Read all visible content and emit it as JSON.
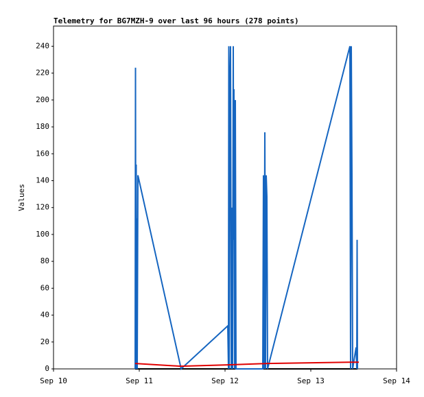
{
  "chart_data": {
    "type": "line",
    "title": "Telemetry for BG7MZH-9 over last 96 hours (278 points)",
    "y_label": "Values",
    "xlim": [
      0,
      4
    ],
    "xticks": [
      {
        "value": 0,
        "label": "Sep 10"
      },
      {
        "value": 1,
        "label": "Sep 11"
      },
      {
        "value": 2,
        "label": "Sep 12"
      },
      {
        "value": 3,
        "label": "Sep 13"
      },
      {
        "value": 4,
        "label": "Sep 14"
      }
    ],
    "ylim": [
      0,
      255
    ],
    "yticks": [
      0,
      20,
      40,
      60,
      80,
      100,
      120,
      140,
      160,
      180,
      200,
      220,
      240
    ],
    "grid": false,
    "series": [
      {
        "color": "#000000",
        "x": [
          0.952,
          3.544
        ],
        "values": [
          0,
          0
        ]
      },
      {
        "color": "#1565c0",
        "x": [
          0.952,
          0.956,
          0.96,
          0.964,
          0.968,
          0.972,
          0.976,
          0.984,
          1.488,
          2.032,
          2.04,
          2.044,
          2.048,
          2.056,
          2.064,
          2.072,
          2.08,
          2.088,
          2.096,
          2.1,
          2.104,
          2.112,
          2.12,
          2.128,
          2.44,
          2.448,
          2.456,
          2.464,
          2.472,
          2.48,
          2.488,
          2.496,
          3.456,
          3.464,
          3.472,
          3.48,
          3.488,
          3.528,
          3.536,
          3.54,
          3.544
        ],
        "values": [
          0,
          224,
          0,
          152,
          0,
          112,
          0,
          144,
          0,
          32,
          0,
          240,
          0,
          208,
          240,
          0,
          120,
          0,
          240,
          96,
          208,
          0,
          200,
          0,
          0,
          144,
          0,
          176,
          0,
          144,
          128,
          0,
          240,
          0,
          240,
          144,
          0,
          16,
          0,
          96,
          0
        ]
      },
      {
        "color": "#e00000",
        "x": [
          0.952,
          1.48,
          2.032,
          2.496,
          3.456,
          3.56
        ],
        "values": [
          4,
          2,
          3,
          4,
          5,
          5
        ]
      }
    ]
  }
}
